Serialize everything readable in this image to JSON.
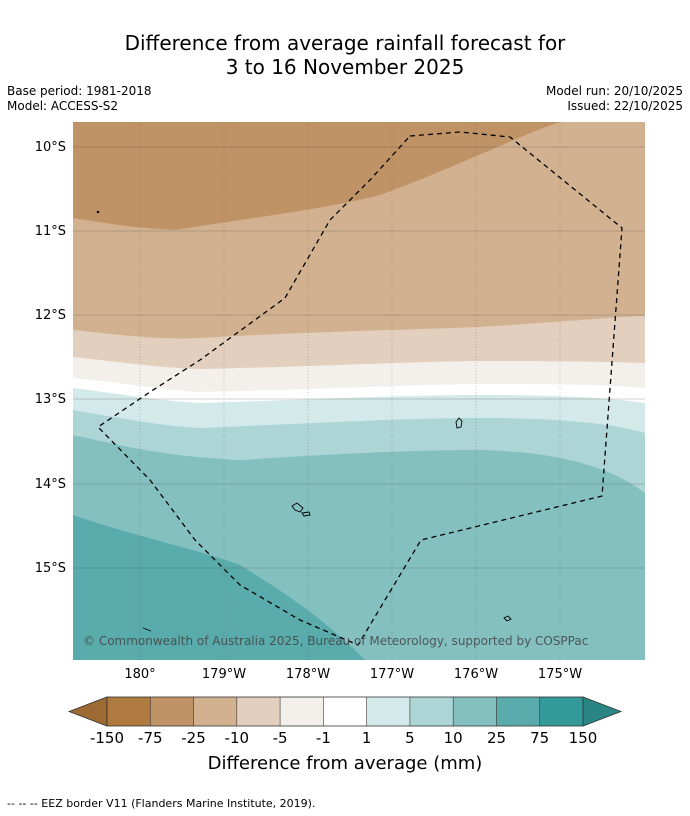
{
  "title": {
    "line1": "Difference from average rainfall forecast for",
    "line2": "3 to 16 November 2025"
  },
  "meta": {
    "base_period": "Base period: 1981-2018",
    "model": "Model: ACCESS-S2",
    "model_run": "Model run: 20/10/2025",
    "issued": "Issued: 22/10/2025"
  },
  "map": {
    "lat_labels": [
      "10°S",
      "11°S",
      "12°S",
      "13°S",
      "14°S",
      "15°S"
    ],
    "lon_labels": [
      "180°",
      "179°W",
      "178°W",
      "177°W",
      "176°W",
      "175°W"
    ],
    "copyright": "© Commonwealth of Australia 2025, Bureau of Meteorology, supported by COSPPac"
  },
  "colorbar": {
    "title": "Difference from average (mm)",
    "ticks": [
      "-150",
      "-75",
      "-25",
      "-10",
      "-5",
      "-1",
      "1",
      "5",
      "10",
      "25",
      "75",
      "150"
    ],
    "colors": [
      "#ae7a3f",
      "#c09366",
      "#d2b190",
      "#e3cfbd",
      "#f3efea",
      "#ffffff",
      "#d4e9e9",
      "#add5d6",
      "#84c0c0",
      "#5aabab",
      "#339a9a"
    ],
    "under_color": "#9d6a33",
    "over_color": "#2a8585"
  },
  "legend": {
    "eez": "--  --  -- EEZ border V11 (Flanders Marine Institute, 2019)."
  }
}
